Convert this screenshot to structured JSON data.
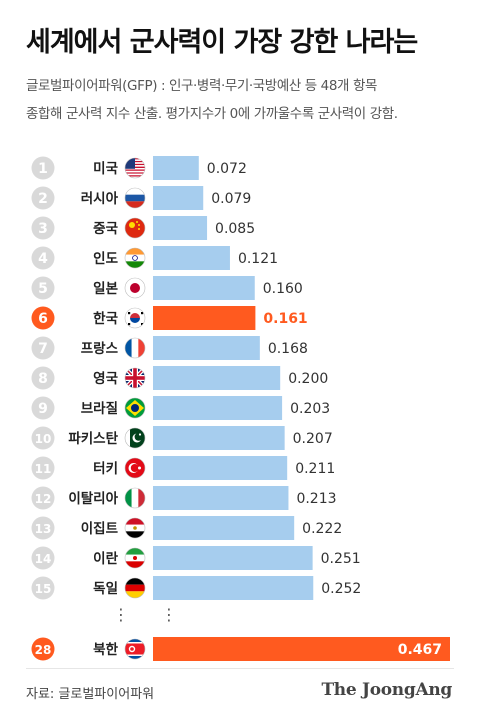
{
  "header": {
    "title": "세계에서 군사력이 가장 강한 나라는",
    "subtitle_line1": "글로벌파이어파워(GFP) : 인구·병력·무기·국방예산 등 48개 항목",
    "subtitle_line2": "종합해 군사력 지수 산출. 평가지수가 0에 가까울수록 군사력이 강함."
  },
  "footer": {
    "source": "자료: 글로벌파이어파워",
    "brand": "The JoongAng"
  },
  "colors": {
    "bar": "#a6cdee",
    "highlight": "#ff5a1f",
    "rank_circle": "#d9d9d9",
    "rank_text": "#ffffff"
  },
  "chart_data": {
    "type": "bar",
    "orientation": "horizontal",
    "title": "세계에서 군사력이 가장 강한 나라는",
    "xlim": [
      0,
      0.467
    ],
    "rows": [
      {
        "rank": "1",
        "country": "미국",
        "value": 0.072,
        "label": "0.072",
        "flag": "usa-flag-icon",
        "highlight": false
      },
      {
        "rank": "2",
        "country": "러시아",
        "value": 0.079,
        "label": "0.079",
        "flag": "russia-flag-icon",
        "highlight": false
      },
      {
        "rank": "3",
        "country": "중국",
        "value": 0.085,
        "label": "0.085",
        "flag": "china-flag-icon",
        "highlight": false
      },
      {
        "rank": "4",
        "country": "인도",
        "value": 0.121,
        "label": "0.121",
        "flag": "india-flag-icon",
        "highlight": false
      },
      {
        "rank": "5",
        "country": "일본",
        "value": 0.16,
        "label": "0.160",
        "flag": "japan-flag-icon",
        "highlight": false
      },
      {
        "rank": "6",
        "country": "한국",
        "value": 0.161,
        "label": "0.161",
        "flag": "korea-flag-icon",
        "highlight": true
      },
      {
        "rank": "7",
        "country": "프랑스",
        "value": 0.168,
        "label": "0.168",
        "flag": "france-flag-icon",
        "highlight": false
      },
      {
        "rank": "8",
        "country": "영국",
        "value": 0.2,
        "label": "0.200",
        "flag": "uk-flag-icon",
        "highlight": false
      },
      {
        "rank": "9",
        "country": "브라질",
        "value": 0.203,
        "label": "0.203",
        "flag": "brazil-flag-icon",
        "highlight": false
      },
      {
        "rank": "10",
        "country": "파키스탄",
        "value": 0.207,
        "label": "0.207",
        "flag": "pakistan-flag-icon",
        "highlight": false
      },
      {
        "rank": "11",
        "country": "터키",
        "value": 0.211,
        "label": "0.211",
        "flag": "turkey-flag-icon",
        "highlight": false
      },
      {
        "rank": "12",
        "country": "이탈리아",
        "value": 0.213,
        "label": "0.213",
        "flag": "italy-flag-icon",
        "highlight": false
      },
      {
        "rank": "13",
        "country": "이집트",
        "value": 0.222,
        "label": "0.222",
        "flag": "egypt-flag-icon",
        "highlight": false
      },
      {
        "rank": "14",
        "country": "이란",
        "value": 0.251,
        "label": "0.251",
        "flag": "iran-flag-icon",
        "highlight": false
      },
      {
        "rank": "15",
        "country": "독일",
        "value": 0.252,
        "label": "0.252",
        "flag": "germany-flag-icon",
        "highlight": false
      },
      {
        "rank": "28",
        "country": "북한",
        "value": 0.467,
        "label": "0.467",
        "flag": "north-korea-flag-icon",
        "highlight": true
      }
    ],
    "ellipsis": "⋮"
  }
}
